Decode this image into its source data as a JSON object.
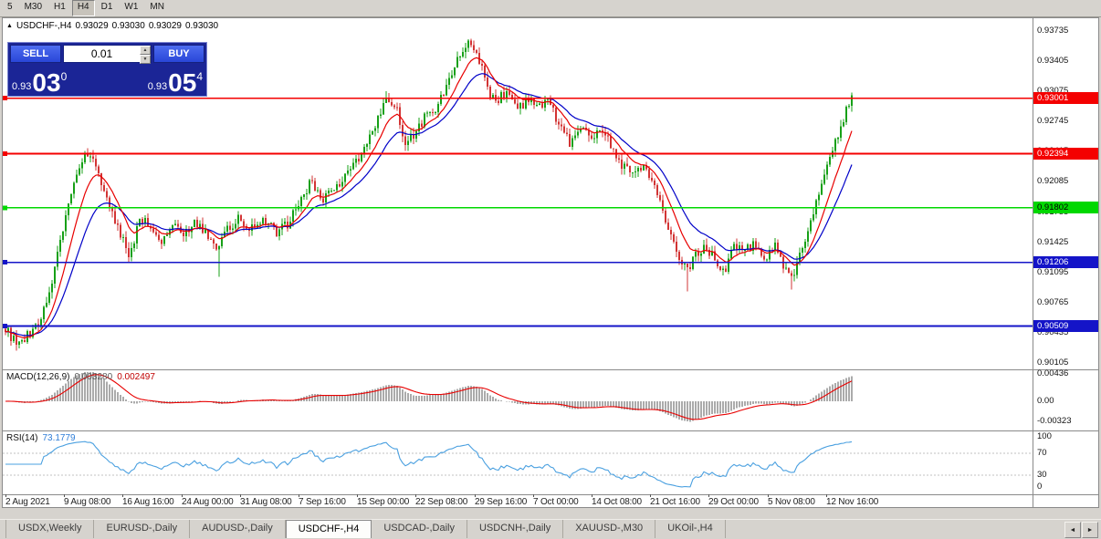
{
  "toolbar": {
    "timeframes": [
      "5",
      "M30",
      "H1",
      "H4",
      "D1",
      "W1",
      "MN"
    ],
    "active": "H4"
  },
  "chart": {
    "ohlc_line": {
      "symbol": "USDCHF-,H4",
      "open": "0.93029",
      "high": "0.93030",
      "low": "0.93029",
      "close": "0.93030"
    },
    "trade_panel": {
      "sell_label": "SELL",
      "buy_label": "BUY",
      "lot_size": "0.01",
      "spin_up": "▲",
      "spin_down": "▼",
      "sell_price_prefix": "0.93",
      "sell_price_big": "03",
      "sell_price_sup": "0",
      "buy_price_prefix": "0.93",
      "buy_price_big": "05",
      "buy_price_sup": "4"
    },
    "collapse_icon": "▲",
    "macd_label": {
      "name": "MACD(12,26,9)",
      "value1": "0.003280",
      "value2": "0.002497"
    },
    "rsi_label": {
      "name": "RSI(14)",
      "value": "73.1779"
    }
  },
  "chart_data": {
    "type": "candlestick",
    "symbol": "USDCHF-",
    "timeframe": "H4",
    "y_axis_labels": [
      "0.93735",
      "0.93405",
      "0.93075",
      "0.92745",
      "0.92415",
      "0.92085",
      "0.91755",
      "0.91425",
      "0.91095",
      "0.90765",
      "0.90435",
      "0.90105"
    ],
    "x_axis_labels": [
      "2 Aug 2021",
      "9 Aug 08:00",
      "16 Aug 16:00",
      "24 Aug 00:00",
      "31 Aug 08:00",
      "7 Sep 16:00",
      "15 Sep 00:00",
      "22 Sep 08:00",
      "29 Sep 16:00",
      "7 Oct 00:00",
      "14 Oct 08:00",
      "21 Oct 16:00",
      "29 Oct 00:00",
      "5 Nov 08:00",
      "12 Nov 16:00"
    ],
    "macd_axis_labels": [
      "0.00436",
      "0.00",
      "-0.00323"
    ],
    "rsi_axis_labels": [
      "100",
      "70",
      "30",
      "0"
    ],
    "levels": [
      {
        "value": 0.93001,
        "label": "0.93001",
        "color": "#f40000",
        "text_color": "#ffffff"
      },
      {
        "value": 0.92394,
        "label": "0.92394",
        "color": "#f40000",
        "text_color": "#ffffff"
      },
      {
        "value": 0.91802,
        "label": "0.91802",
        "color": "#00d800",
        "text_color": "#000000"
      },
      {
        "value": 0.91206,
        "label": "0.91206",
        "color": "#1414c8",
        "text_color": "#ffffff"
      },
      {
        "value": 0.90509,
        "label": "0.90509",
        "color": "#1414c8",
        "text_color": "#ffffff"
      }
    ],
    "price_anchors": [
      [
        0.0,
        0.9048
      ],
      [
        0.012,
        0.9033
      ],
      [
        0.025,
        0.904
      ],
      [
        0.04,
        0.9056
      ],
      [
        0.055,
        0.91
      ],
      [
        0.068,
        0.916
      ],
      [
        0.08,
        0.9202
      ],
      [
        0.094,
        0.9238
      ],
      [
        0.105,
        0.923
      ],
      [
        0.12,
        0.9188
      ],
      [
        0.135,
        0.9152
      ],
      [
        0.147,
        0.9128
      ],
      [
        0.16,
        0.917
      ],
      [
        0.172,
        0.9157
      ],
      [
        0.185,
        0.9144
      ],
      [
        0.198,
        0.9166
      ],
      [
        0.211,
        0.9151
      ],
      [
        0.224,
        0.9164
      ],
      [
        0.238,
        0.9152
      ],
      [
        0.25,
        0.9132
      ],
      [
        0.26,
        0.9155
      ],
      [
        0.275,
        0.9167
      ],
      [
        0.29,
        0.9157
      ],
      [
        0.305,
        0.9167
      ],
      [
        0.32,
        0.9154
      ],
      [
        0.335,
        0.9164
      ],
      [
        0.349,
        0.9188
      ],
      [
        0.362,
        0.921
      ],
      [
        0.375,
        0.9188
      ],
      [
        0.39,
        0.9202
      ],
      [
        0.405,
        0.9216
      ],
      [
        0.42,
        0.9238
      ],
      [
        0.435,
        0.9266
      ],
      [
        0.45,
        0.9303
      ],
      [
        0.462,
        0.9288
      ],
      [
        0.472,
        0.9252
      ],
      [
        0.484,
        0.9262
      ],
      [
        0.496,
        0.928
      ],
      [
        0.508,
        0.929
      ],
      [
        0.52,
        0.931
      ],
      [
        0.535,
        0.9342
      ],
      [
        0.548,
        0.9362
      ],
      [
        0.558,
        0.9348
      ],
      [
        0.57,
        0.9306
      ],
      [
        0.58,
        0.9296
      ],
      [
        0.592,
        0.9308
      ],
      [
        0.605,
        0.929
      ],
      [
        0.618,
        0.9298
      ],
      [
        0.63,
        0.929
      ],
      [
        0.642,
        0.9296
      ],
      [
        0.655,
        0.927
      ],
      [
        0.668,
        0.925
      ],
      [
        0.68,
        0.9266
      ],
      [
        0.692,
        0.9256
      ],
      [
        0.705,
        0.9268
      ],
      [
        0.718,
        0.924
      ],
      [
        0.73,
        0.9226
      ],
      [
        0.742,
        0.9216
      ],
      [
        0.755,
        0.9226
      ],
      [
        0.768,
        0.9202
      ],
      [
        0.78,
        0.9166
      ],
      [
        0.792,
        0.9136
      ],
      [
        0.804,
        0.9112
      ],
      [
        0.815,
        0.9126
      ],
      [
        0.826,
        0.914
      ],
      [
        0.838,
        0.9124
      ],
      [
        0.85,
        0.9112
      ],
      [
        0.862,
        0.914
      ],
      [
        0.874,
        0.9136
      ],
      [
        0.886,
        0.914
      ],
      [
        0.898,
        0.9126
      ],
      [
        0.908,
        0.9142
      ],
      [
        0.918,
        0.9118
      ],
      [
        0.928,
        0.9102
      ],
      [
        0.938,
        0.9126
      ],
      [
        0.95,
        0.9162
      ],
      [
        0.962,
        0.92
      ],
      [
        0.974,
        0.9236
      ],
      [
        0.987,
        0.927
      ],
      [
        1.0,
        0.9303
      ]
    ],
    "spikes": [
      {
        "f": 0.251,
        "low": 0.9105
      },
      {
        "f": 0.806,
        "low": 0.9089
      },
      {
        "f": 0.93,
        "low": 0.9091
      }
    ],
    "last_close": 0.9303,
    "max_high": 0.9368,
    "colors": {
      "up": "#17a017",
      "down": "#d23434",
      "ma_fast": "#e80000",
      "ma_slow": "#0000c8",
      "macd_hist": "#ababab",
      "macd_signal": "#e80000",
      "rsi": "#4aa0e0",
      "rsi_levels": "#c0c0c0"
    }
  },
  "tabbar": {
    "tabs": [
      "USDX,Weekly",
      "EURUSD-,Daily",
      "AUDUSD-,Daily",
      "USDCHF-,H4",
      "USDCAD-,Daily",
      "USDCNH-,Daily",
      "XAUUSD-,M30",
      "UKOil-,H4"
    ],
    "active_index": 3,
    "left_arrow": "◄",
    "right_arrow": "►"
  }
}
